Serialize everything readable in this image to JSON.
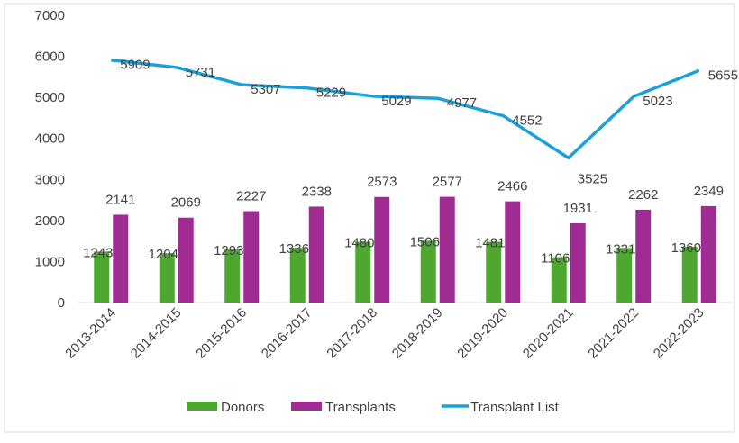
{
  "chart_data": {
    "type": "bar+line",
    "title": "",
    "xlabel": "",
    "ylabel": "",
    "ylim": [
      0,
      7000
    ],
    "yticks": [
      0,
      1000,
      2000,
      3000,
      4000,
      5000,
      6000,
      7000
    ],
    "grid": false,
    "legend_position": "bottom",
    "categories": [
      "2013-2014",
      "2014-2015",
      "2015-2016",
      "2016-2017",
      "2017-2018",
      "2018-2019",
      "2019-2020",
      "2020-2021",
      "2021-2022",
      "2022-2023"
    ],
    "series": [
      {
        "name": "Donors",
        "type": "bar",
        "color": "#4ea72e",
        "values": [
          1243,
          1204,
          1293,
          1336,
          1480,
          1506,
          1481,
          1106,
          1331,
          1360
        ]
      },
      {
        "name": "Transplants",
        "type": "bar",
        "color": "#a02b93",
        "values": [
          2141,
          2069,
          2227,
          2338,
          2573,
          2577,
          2466,
          1931,
          2262,
          2349
        ]
      },
      {
        "name": "Transplant List",
        "type": "line",
        "color": "#1ba1d9",
        "values": [
          5909,
          5731,
          5307,
          5229,
          5029,
          4977,
          4552,
          3525,
          5023,
          5655
        ]
      }
    ]
  }
}
